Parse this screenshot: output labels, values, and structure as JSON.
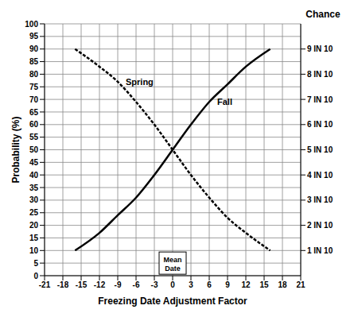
{
  "chart_data": {
    "type": "line",
    "x_label": "Freezing Date Adjustment Factor",
    "y_label": "Probability (%)",
    "y2_label": "Chance",
    "x": [
      -16,
      -12,
      -9,
      -6,
      -3,
      0,
      3,
      6,
      9,
      12,
      16
    ],
    "series": [
      {
        "name": "Spring",
        "color": "#000000",
        "line_style": "dashed",
        "values": [
          90,
          83,
          77,
          69,
          60,
          50,
          40,
          31,
          23,
          17,
          10
        ]
      },
      {
        "name": "Fall",
        "color": "#000000",
        "line_style": "solid",
        "values": [
          10,
          17,
          24,
          31,
          40,
          50,
          60,
          69,
          76,
          83,
          90
        ]
      }
    ],
    "xlim": [
      -21,
      21
    ],
    "xticks": [
      -21,
      -18,
      -15,
      -12,
      -9,
      -6,
      -3,
      0,
      3,
      6,
      9,
      12,
      15,
      18,
      21
    ],
    "ylim": [
      0,
      100
    ],
    "yticks": [
      0,
      5,
      10,
      15,
      20,
      25,
      30,
      35,
      40,
      45,
      50,
      55,
      60,
      65,
      70,
      75,
      80,
      85,
      90,
      95,
      100
    ],
    "y2lim": [
      0,
      100
    ],
    "y2ticks": [
      {
        "value": 10,
        "label": "1 IN 10"
      },
      {
        "value": 20,
        "label": "2 IN 10"
      },
      {
        "value": 30,
        "label": "3 IN 10"
      },
      {
        "value": 40,
        "label": "4 IN 10"
      },
      {
        "value": 50,
        "label": "5 IN 10"
      },
      {
        "value": 60,
        "label": "6 IN 10"
      },
      {
        "value": 70,
        "label": "7 IN 10"
      },
      {
        "value": 80,
        "label": "8 IN 10"
      },
      {
        "value": 90,
        "label": "9 IN 10"
      }
    ],
    "grid": true,
    "annotations": [
      {
        "text": "Mean Date",
        "x": 0,
        "y": 5
      }
    ]
  }
}
